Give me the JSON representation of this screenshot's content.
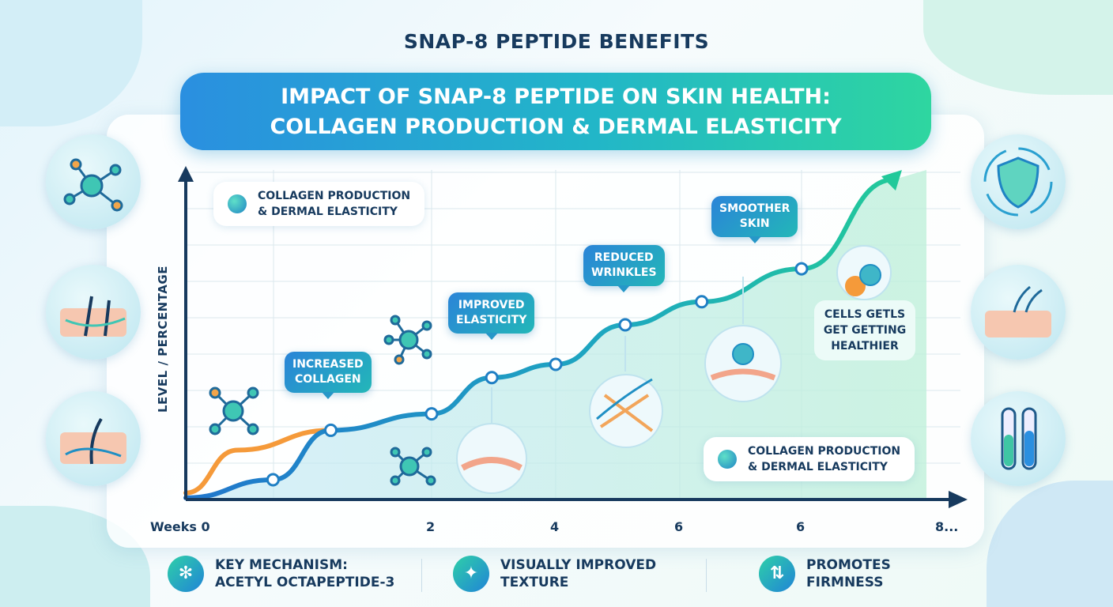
{
  "title": "SNAP-8 PEPTIDE BENEFITS",
  "banner": {
    "line1": "IMPACT OF SNAP-8 PEPTIDE ON SKIN HEALTH:",
    "line2": "COLLAGEN PRODUCTION & DERMAL ELASTICITY"
  },
  "colors": {
    "primary_line": "#1f8fd0",
    "secondary_line": "#f59a3a",
    "accent": "#2ed6a0",
    "axis": "#173a5e"
  },
  "chart_data": {
    "type": "line",
    "title": "IMPACT OF SNAP-8 PEPTIDE ON SKIN HEALTH: COLLAGEN PRODUCTION & DERMAL ELASTICITY",
    "xlabel": "Weeks",
    "ylabel": "LEVEL / PERCENTAGE",
    "x_tick_labels": [
      "Weeks 0",
      "2",
      "4",
      "6",
      "6",
      "8..."
    ],
    "grid": true,
    "series": [
      {
        "name": "COLLAGEN PRODUCTION & DERMAL ELASTICITY",
        "color": "#1f8fd0",
        "x": [
          0,
          0.71,
          1.18,
          2,
          2.97,
          4,
          5.12,
          6.18,
          7,
          7.71
        ],
        "y": [
          0.5,
          6,
          21,
          26,
          37,
          41,
          53,
          60,
          70,
          99
        ]
      },
      {
        "color": "#f59a3a",
        "x": [
          0,
          0.42,
          1.18
        ],
        "y": [
          2,
          15,
          21
        ]
      }
    ],
    "annotations": [
      "INCREASED COLLAGEN",
      "IMPROVED ELASTICITY",
      "REDUCED WRINKLES",
      "SMOOTHER SKIN",
      "CELLS GETLS GET GETTING HEALTHIER"
    ],
    "legend": [
      {
        "label": "COLLAGEN PRODUCTION & DERMAL ELASTICITY",
        "placement": "top-left"
      },
      {
        "label": "COLLAGEN PRODUCTION & DERMAL ELASTICITY",
        "placement": "bottom-right"
      }
    ]
  },
  "legend_top": {
    "line1": "COLLAGEN PRODUCTION",
    "line2": "& DERMAL ELASTICITY"
  },
  "legend_bottom": {
    "line1": "COLLAGEN PRODUCTION",
    "line2": "& DERMAL ELASTICITY"
  },
  "callouts": {
    "c1": {
      "line1": "INCREASED",
      "line2": "COLLAGEN"
    },
    "c2": {
      "line1": "IMPROVED",
      "line2": "ELASTICITY"
    },
    "c3": {
      "line1": "REDUCED",
      "line2": "WRINKLES"
    },
    "c4": {
      "line1": "SMOOTHER",
      "line2": "SKIN"
    }
  },
  "note": {
    "line1": "CELLS GETLS",
    "line2": "GET GETTING",
    "line3": "HEALTHIER"
  },
  "features": [
    {
      "icon": "molecule-icon",
      "line1": "KEY MECHANISM:",
      "line2": "ACETYL OCTAPEPTIDE-3"
    },
    {
      "icon": "sparkle-icon",
      "line1": "VISUALLY IMPROVED",
      "line2": "TEXTURE"
    },
    {
      "icon": "compress-icon",
      "line1": "PROMOTES",
      "line2": "FIRMNESS"
    }
  ],
  "side_icons": [
    "molecule-icon",
    "skin-hair-icon",
    "skin-follicle-icon",
    "face-shield-icon",
    "skin-layers-icon",
    "test-tubes-icon"
  ]
}
